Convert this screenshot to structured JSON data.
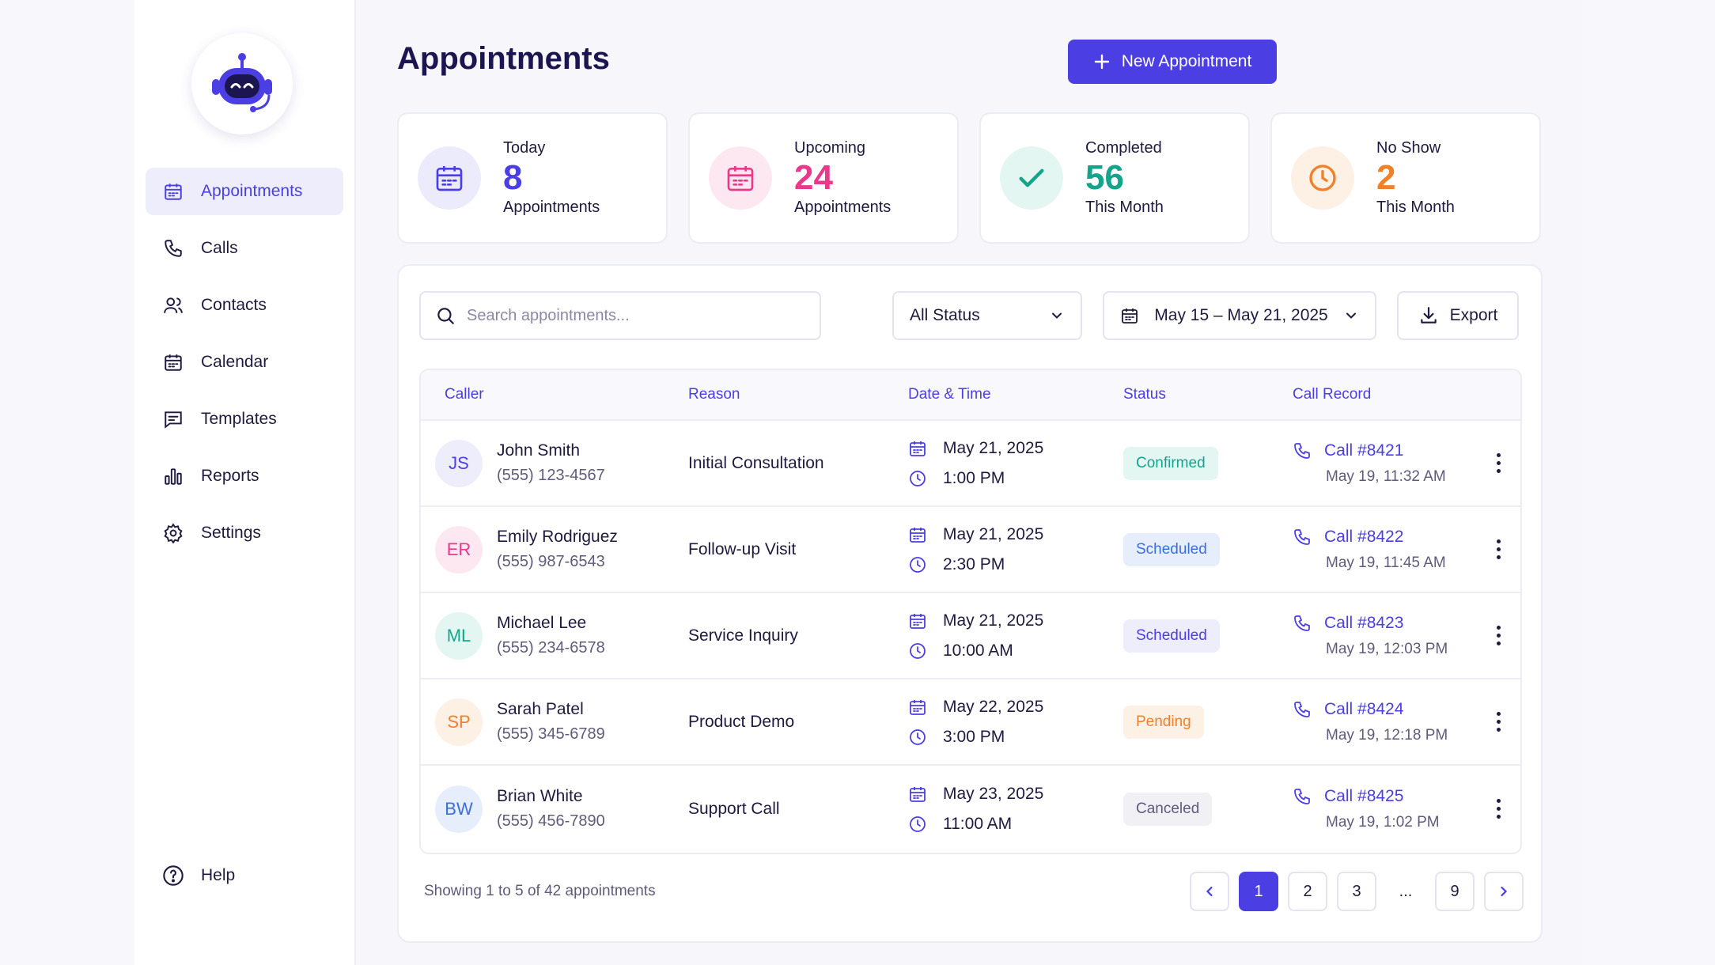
{
  "page": {
    "title": "Appointments"
  },
  "header": {
    "new_button": "New Appointment"
  },
  "sidebar": {
    "items": [
      {
        "label": "Appointments",
        "icon": "calendar-icon",
        "active": true
      },
      {
        "label": "Calls",
        "icon": "phone-icon"
      },
      {
        "label": "Contacts",
        "icon": "users-icon"
      },
      {
        "label": "Calendar",
        "icon": "calendar-icon"
      },
      {
        "label": "Templates",
        "icon": "message-square-icon"
      },
      {
        "label": "Reports",
        "icon": "bar-chart-icon"
      },
      {
        "label": "Settings",
        "icon": "gear-icon"
      }
    ],
    "help": "Help"
  },
  "stats": [
    {
      "label": "Today",
      "value": "8",
      "sub": "Appointments",
      "color": "#4b3fe4",
      "bg": "#ecebfb",
      "icon": "calendar-icon"
    },
    {
      "label": "Upcoming",
      "value": "24",
      "sub": "Appointments",
      "color": "#e8398a",
      "bg": "#fde8f1",
      "icon": "calendar-icon"
    },
    {
      "label": "Completed",
      "value": "56",
      "sub": "This Month",
      "color": "#14a48c",
      "bg": "#e3f6f1",
      "icon": "check-icon"
    },
    {
      "label": "No Show",
      "value": "2",
      "sub": "This Month",
      "color": "#f0802a",
      "bg": "#fdf0e4",
      "icon": "clock-icon"
    }
  ],
  "filters": {
    "search_placeholder": "Search appointments...",
    "status": "All Status",
    "date_range": "May 15 – May 21, 2025",
    "export": "Export"
  },
  "table": {
    "headers": {
      "caller": "Caller",
      "reason": "Reason",
      "datetime": "Date & Time",
      "status": "Status",
      "record": "Call Record"
    },
    "rows": [
      {
        "initials": "JS",
        "name": "John Smith",
        "phone": "(555) 123-4567",
        "reason": "Initial Consultation",
        "date": "May 21, 2025",
        "time": "1:00 PM",
        "status": "Confirmed",
        "call": "Call #8421",
        "call_time": "May 19, 11:32 AM",
        "avatar_color": "#4b3fe4",
        "avatar_bg": "#eeedfb",
        "status_color": "#14a48c",
        "status_bg": "#e3f6f1"
      },
      {
        "initials": "ER",
        "name": "Emily Rodriguez",
        "phone": "(555) 987-6543",
        "reason": "Follow-up Visit",
        "date": "May 21, 2025",
        "time": "2:30 PM",
        "status": "Scheduled",
        "call": "Call #8422",
        "call_time": "May 19, 11:45 AM",
        "avatar_color": "#e8398a",
        "avatar_bg": "#fde8f1",
        "status_color": "#3b6fd8",
        "status_bg": "#e6eefc"
      },
      {
        "initials": "ML",
        "name": "Michael Lee",
        "phone": "(555) 234-6578",
        "reason": "Service Inquiry",
        "date": "May 21, 2025",
        "time": "10:00 AM",
        "status": "Scheduled",
        "call": "Call #8423",
        "call_time": "May 19, 12:03 PM",
        "avatar_color": "#14a48c",
        "avatar_bg": "#e3f6f1",
        "status_color": "#4b3fe4",
        "status_bg": "#eeedfb"
      },
      {
        "initials": "SP",
        "name": "Sarah Patel",
        "phone": "(555) 345-6789",
        "reason": "Product Demo",
        "date": "May 22, 2025",
        "time": "3:00 PM",
        "status": "Pending",
        "call": "Call #8424",
        "call_time": "May 19, 12:18 PM",
        "avatar_color": "#f0802a",
        "avatar_bg": "#fdf0e4",
        "status_color": "#f0802a",
        "status_bg": "#fdf0e4"
      },
      {
        "initials": "BW",
        "name": "Brian White",
        "phone": "(555) 456-7890",
        "reason": "Support Call",
        "date": "May 23, 2025",
        "time": "11:00 AM",
        "status": "Canceled",
        "call": "Call #8425",
        "call_time": "May 19, 1:02 PM",
        "avatar_color": "#3b6fd8",
        "avatar_bg": "#e6eefc",
        "status_color": "#5f5b7a",
        "status_bg": "#f0f0f5"
      }
    ]
  },
  "footer": {
    "showing": "Showing 1 to 5 of 42 appointments",
    "pages": [
      "1",
      "2",
      "3",
      "...",
      "9"
    ],
    "active_page": "1"
  }
}
